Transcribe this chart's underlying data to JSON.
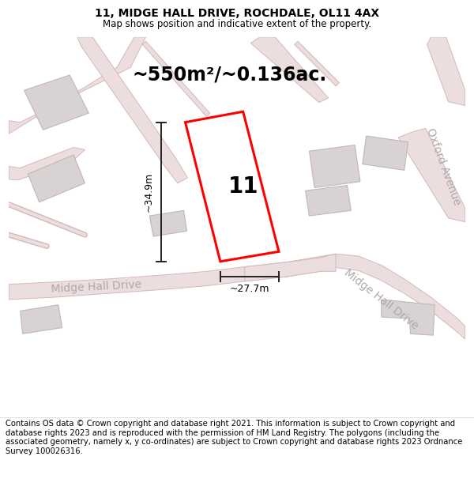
{
  "title": "11, MIDGE HALL DRIVE, ROCHDALE, OL11 4AX",
  "subtitle": "Map shows position and indicative extent of the property.",
  "area_text": "~550m²/~0.136ac.",
  "number_label": "11",
  "dim_height": "~34.9m",
  "dim_width": "~27.7m",
  "footer": "Contains OS data © Crown copyright and database right 2021. This information is subject to Crown copyright and database rights 2023 and is reproduced with the permission of HM Land Registry. The polygons (including the associated geometry, namely x, y co-ordinates) are subject to Crown copyright and database rights 2023 Ordnance Survey 100026316.",
  "map_bg": "#f7f3f3",
  "road_fill": "#ecdede",
  "road_edge": "#d4b8b8",
  "building_fill": "#d8d2d2",
  "building_edge": "#c0b8b8",
  "plot_edge": "#ff0000",
  "plot_fill": "#ffffff",
  "dim_color": "#222222",
  "road_label_color": "#b0a8a8",
  "title_fontsize": 10,
  "subtitle_fontsize": 8.5,
  "area_fontsize": 17,
  "number_fontsize": 20,
  "dim_fontsize": 9,
  "footer_fontsize": 7.2,
  "road_label_fontsize": 10
}
